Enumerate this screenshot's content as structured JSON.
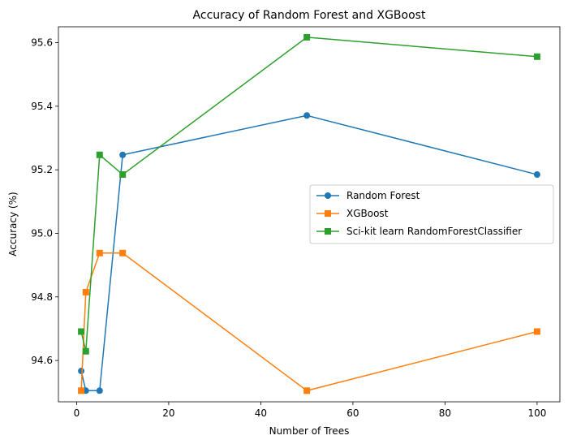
{
  "chart_data": {
    "type": "line",
    "title": "Accuracy of Random Forest and XGBoost",
    "xlabel": "Number of Trees",
    "ylabel": "Accuracy (%)",
    "xlim": [
      -3.95,
      104.95
    ],
    "ylim": [
      94.47,
      95.65
    ],
    "xticks": [
      0,
      20,
      40,
      60,
      80,
      100
    ],
    "yticks": [
      94.6,
      94.8,
      95.0,
      95.2,
      95.4,
      95.6
    ],
    "ytick_labels": [
      "94.6",
      "94.8",
      "95.0",
      "95.2",
      "95.4",
      "95.6"
    ],
    "grid": false,
    "legend": "center-right",
    "series": [
      {
        "name": "Random Forest",
        "color": "#1f77b4",
        "marker": "circle",
        "x": [
          1,
          2,
          5,
          10,
          50,
          100
        ],
        "y": [
          94.567,
          94.505,
          94.505,
          95.247,
          95.371,
          95.185
        ]
      },
      {
        "name": "XGBoost",
        "color": "#ff7f0e",
        "marker": "square",
        "x": [
          1,
          2,
          5,
          10,
          50,
          100
        ],
        "y": [
          94.505,
          94.815,
          94.938,
          94.938,
          94.505,
          94.691
        ]
      },
      {
        "name": "Sci-kit learn RandomForestClassifier",
        "color": "#2ca02c",
        "marker": "square",
        "x": [
          1,
          2,
          5,
          10,
          50,
          100
        ],
        "y": [
          94.691,
          94.629,
          95.247,
          95.185,
          95.617,
          95.556
        ]
      }
    ]
  }
}
